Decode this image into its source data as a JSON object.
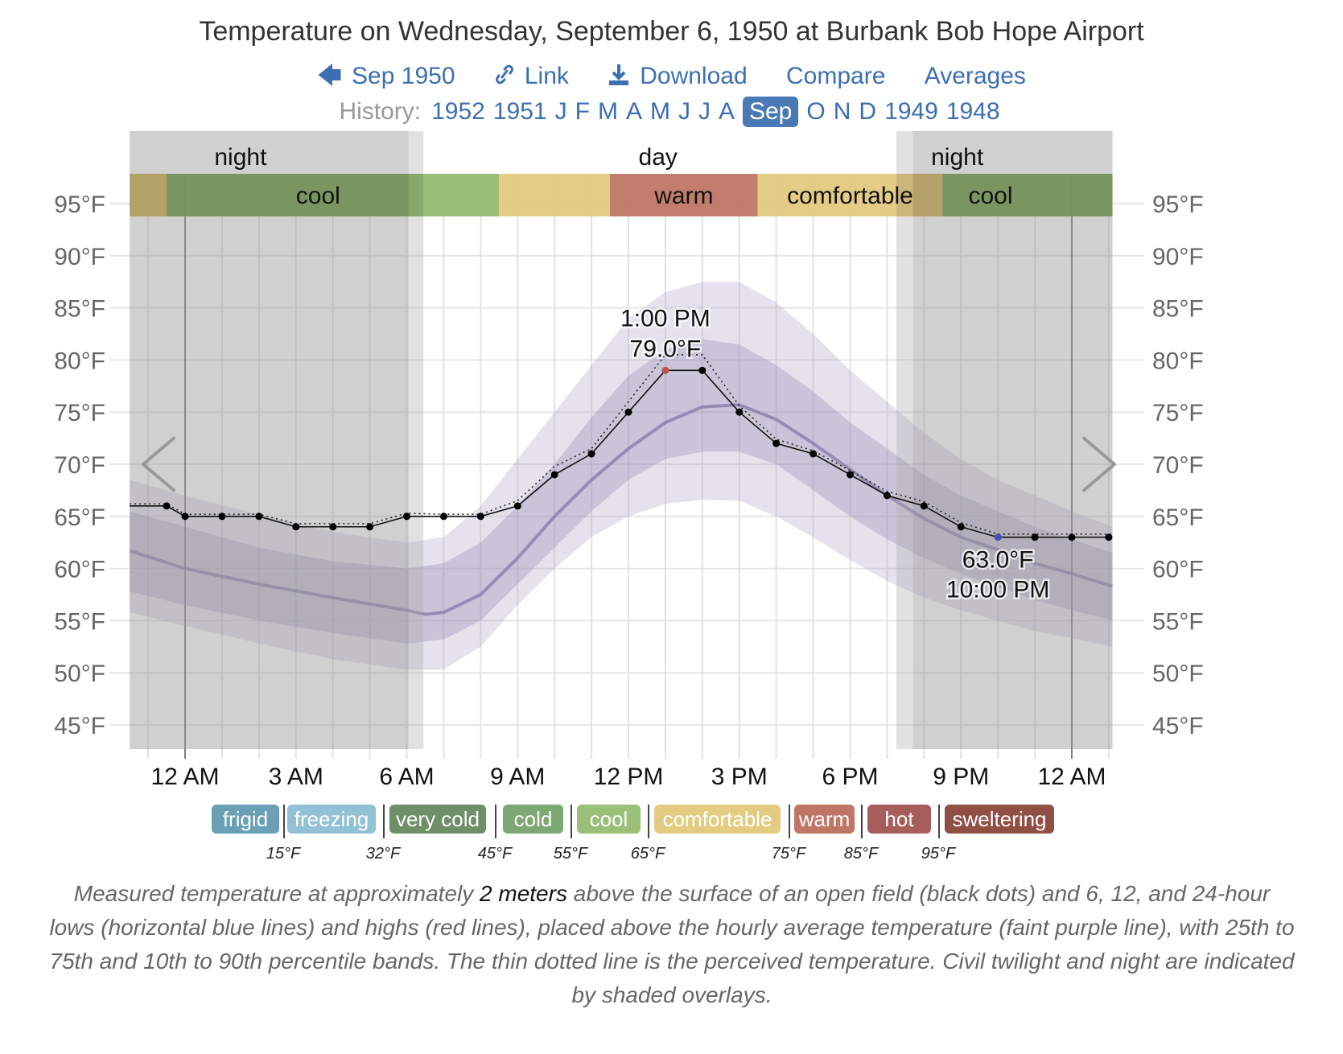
{
  "header": {
    "title": "Temperature on Wednesday, September 6, 1950 at Burbank Bob Hope Airport",
    "nav": [
      {
        "icon": "arrow-left-icon",
        "label": "Sep 1950"
      },
      {
        "icon": "link-icon",
        "label": "Link"
      },
      {
        "icon": "download-icon",
        "label": "Download"
      },
      {
        "icon": "",
        "label": "Compare"
      },
      {
        "icon": "",
        "label": "Averages"
      }
    ],
    "history_label": "History:",
    "history": [
      "1952",
      "1951",
      "J",
      "F",
      "M",
      "A",
      "M",
      "J",
      "J",
      "A",
      "Sep",
      "O",
      "N",
      "D",
      "1949",
      "1948"
    ],
    "history_selected": "Sep"
  },
  "chart_data": {
    "type": "line",
    "title": "Temperature on Wednesday, September 6, 1950 at Burbank Bob Hope Airport",
    "xlabel": "",
    "ylabel": "",
    "ylim": [
      45,
      95
    ],
    "yticks": [
      "95°F",
      "90°F",
      "85°F",
      "80°F",
      "75°F",
      "70°F",
      "65°F",
      "60°F",
      "55°F",
      "50°F",
      "45°F"
    ],
    "ytick_values": [
      95,
      90,
      85,
      80,
      75,
      70,
      65,
      60,
      55,
      50,
      45
    ],
    "xticks": [
      "12 AM",
      "3 AM",
      "6 AM",
      "9 AM",
      "12 PM",
      "3 PM",
      "6 PM",
      "9 PM",
      "12 AM"
    ],
    "xtick_hours": [
      0,
      3,
      6,
      9,
      12,
      15,
      18,
      21,
      24
    ],
    "xlim_hours": [
      -1.5,
      25.1
    ],
    "grid": true,
    "measured": {
      "hours": [
        -1.5,
        -0.5,
        0,
        1,
        2,
        3,
        4,
        5,
        6,
        7,
        8,
        9,
        10,
        11,
        12,
        13,
        14,
        15,
        16,
        17,
        18,
        19,
        20,
        21,
        22,
        23,
        24,
        25,
        25.1
      ],
      "values": [
        66,
        66,
        65,
        65,
        65,
        64,
        64,
        64,
        65,
        65,
        65,
        66,
        69,
        71,
        75,
        79,
        79,
        75,
        72,
        71,
        69,
        67,
        66,
        64,
        63,
        63,
        63,
        63,
        63
      ]
    },
    "perceived": {
      "hours": [
        -1.5,
        -0.5,
        0,
        1,
        2,
        3,
        4,
        5,
        6,
        7,
        8,
        9,
        10,
        11,
        12,
        13,
        14,
        15,
        16,
        17,
        18,
        19,
        20,
        21,
        22,
        23,
        24,
        25,
        25.1
      ],
      "values": [
        66.2,
        66.2,
        65.2,
        65.2,
        65.2,
        64.3,
        64.3,
        64.3,
        65.3,
        65.2,
        65.2,
        66.5,
        69.8,
        71.5,
        76,
        80.5,
        80.5,
        75.6,
        72.4,
        71.3,
        69.4,
        67.4,
        66.4,
        64.4,
        63.3,
        63.3,
        63.3,
        63.3,
        63.3
      ]
    },
    "average": {
      "hours": [
        -1.5,
        0,
        2,
        4,
        6,
        6.5,
        7,
        8,
        9,
        10,
        11,
        12,
        13,
        14,
        15,
        16,
        17,
        18,
        19,
        20,
        21,
        22,
        23,
        24,
        25.1
      ],
      "values": [
        61.7,
        60,
        58.5,
        57.2,
        56,
        55.6,
        55.8,
        57.5,
        61,
        65,
        68.5,
        71.5,
        74,
        75.5,
        75.7,
        74.3,
        72,
        69.5,
        67,
        64.8,
        63,
        61.8,
        60.5,
        59.5,
        58.3
      ]
    },
    "p25_p75": {
      "hours": [
        -1.5,
        0,
        2,
        4,
        6,
        7,
        8,
        9,
        10,
        11,
        12,
        13,
        14,
        15,
        16,
        17,
        18,
        19,
        20,
        21,
        22,
        23,
        24,
        25.1
      ],
      "low": [
        57.8,
        56.5,
        55,
        53.8,
        52.8,
        53.2,
        55,
        58.5,
        62,
        65.5,
        68.5,
        70.5,
        71.2,
        71.2,
        70,
        67.5,
        65,
        62.8,
        61,
        59.5,
        58.2,
        57,
        56,
        55
      ],
      "high": [
        65.5,
        64,
        62,
        60.7,
        60,
        60.5,
        62.5,
        66,
        70,
        74.5,
        78.5,
        81,
        82,
        81.5,
        79.5,
        77,
        74,
        71.5,
        69,
        67,
        65.5,
        64,
        62.8,
        61.5
      ]
    },
    "p10_p90": {
      "hours": [
        -1.5,
        0,
        2,
        4,
        6,
        7,
        8,
        9,
        10,
        11,
        12,
        13,
        14,
        15,
        16,
        17,
        18,
        19,
        20,
        21,
        22,
        23,
        24,
        25.1
      ],
      "low": [
        55.8,
        54.5,
        52.8,
        51.3,
        50.3,
        50.3,
        52.5,
        56.5,
        60,
        63,
        65,
        66.2,
        66.6,
        66.5,
        65,
        63,
        60.8,
        58.8,
        57.2,
        56,
        55,
        54,
        53.3,
        52.5
      ],
      "high": [
        68.5,
        67,
        65.2,
        63.5,
        62.5,
        63,
        66,
        70.5,
        75,
        79.5,
        84,
        86.5,
        87.5,
        87.5,
        85.5,
        82.5,
        79,
        76,
        73,
        70.5,
        68.5,
        67,
        65.5,
        64
      ]
    },
    "annotations": [
      {
        "hour": 13,
        "value": 79,
        "time_label": "1:00 PM",
        "value_label": "79.0°F",
        "kind": "high",
        "color": "#c0504d"
      },
      {
        "hour": 22,
        "value": 63,
        "time_label": "10:00 PM",
        "value_label": "63.0°F",
        "kind": "low",
        "color": "#4b4bbf"
      }
    ],
    "daylight": [
      {
        "label": "night",
        "from": -1.5,
        "to": 6.05
      },
      {
        "label": "twilight",
        "from": 6.05,
        "to": 6.45
      },
      {
        "label": "day",
        "from": 6.45,
        "to": 19.25
      },
      {
        "label": "twilight",
        "from": 19.25,
        "to": 19.7
      },
      {
        "label": "night",
        "from": 19.7,
        "to": 25.1
      }
    ],
    "daylight_labels": [
      {
        "label": "night",
        "hour": 1.5
      },
      {
        "label": "day",
        "hour": 12.8
      },
      {
        "label": "night",
        "hour": 20.9
      }
    ],
    "comfort_band": [
      {
        "label": "",
        "from": -1.5,
        "to": -0.5,
        "color": "#e3c97f"
      },
      {
        "label": "cool",
        "from": -0.5,
        "to": 8.5,
        "color": "#95bb73"
      },
      {
        "label": "",
        "from": 8.5,
        "to": 11.5,
        "color": "#e3c97f"
      },
      {
        "label": "warm",
        "from": 11.5,
        "to": 15.5,
        "color": "#bf7664"
      },
      {
        "label": "comfortable",
        "from": 15.5,
        "to": 20.5,
        "color": "#e3c97f"
      },
      {
        "label": "cool",
        "from": 20.5,
        "to": 25.1,
        "color": "#95bb73"
      }
    ],
    "comfort_band_labels": [
      {
        "label": "cool",
        "hour": 3.6
      },
      {
        "label": "warm",
        "hour": 13.5
      },
      {
        "label": "comfortable",
        "hour": 18
      },
      {
        "label": "cool",
        "hour": 21.8
      }
    ]
  },
  "legend": {
    "categories": [
      {
        "label": "frigid",
        "color": "#6a9fb5"
      },
      {
        "label": "freezing",
        "color": "#92c1d5"
      },
      {
        "label": "very cold",
        "color": "#6f8f68"
      },
      {
        "label": "cold",
        "color": "#7fa774"
      },
      {
        "label": "cool",
        "color": "#99bf78"
      },
      {
        "label": "comfortable",
        "color": "#e3cc82"
      },
      {
        "label": "warm",
        "color": "#bf7664"
      },
      {
        "label": "hot",
        "color": "#a85d5d"
      },
      {
        "label": "sweltering",
        "color": "#8f4f45"
      }
    ],
    "thresholds": [
      "15°F",
      "32°F",
      "45°F",
      "55°F",
      "65°F",
      "75°F",
      "85°F",
      "95°F"
    ]
  },
  "caption": {
    "part1": "Measured temperature at approximately ",
    "bold": "2 meters",
    "part2": " above the surface of an open field (black dots) and 6, 12, and 24-hour lows (horizontal blue lines) and highs (red lines), placed above the hourly average temperature (faint purple line), with 25th to 75th and 10th to 90th percentile bands. The thin dotted line is the perceived temperature. Civil twilight and night are indicated by shaded overlays."
  },
  "nav_arrows": {
    "prev": "chevron-left-icon",
    "next": "chevron-right-icon"
  }
}
